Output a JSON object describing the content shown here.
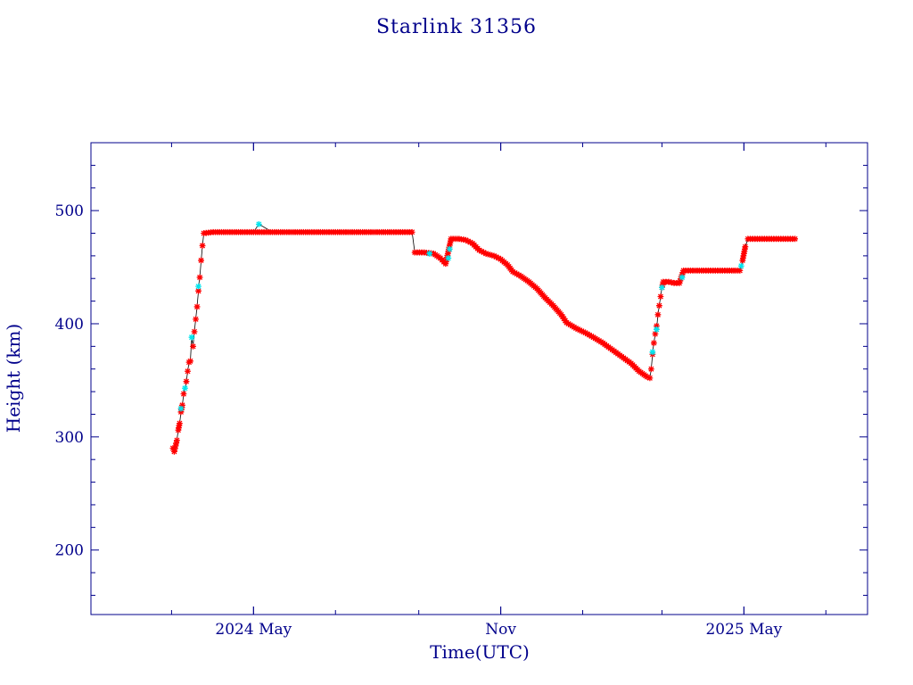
{
  "chart_data": {
    "type": "scatter",
    "title": "Starlink 31356",
    "xlabel": "Time(UTC)",
    "ylabel": "Height (km)",
    "x_ticks": [
      {
        "date": "2024-05-01",
        "label": "2024 May"
      },
      {
        "date": "2024-11-01",
        "label": "Nov"
      },
      {
        "date": "2025-05-01",
        "label": "2025 May"
      }
    ],
    "y_ticks": [
      200,
      300,
      400,
      500
    ],
    "xlim": [
      "2024-01-01",
      "2025-08-01"
    ],
    "ylim": [
      143,
      560
    ],
    "grid": false,
    "colors": {
      "axes": "#00008b",
      "main_points": "#ff0000",
      "alt_points": "#00e5ee",
      "line": "#000000"
    },
    "series": [
      {
        "marker": "asterisk",
        "color": "#ff0000",
        "points": [
          [
            "2024-03-02",
            290
          ],
          [
            "2024-03-03",
            287
          ],
          [
            "2024-03-04",
            292
          ],
          [
            "2024-03-05",
            297
          ],
          [
            "2024-03-06",
            306
          ],
          [
            "2024-03-07",
            312
          ],
          [
            "2024-03-08",
            322
          ],
          [
            "2024-03-09",
            328
          ],
          [
            "2024-03-10",
            338
          ],
          [
            "2024-03-12",
            349
          ],
          [
            "2024-03-13",
            358
          ],
          [
            "2024-03-14",
            366
          ],
          [
            "2024-03-15",
            367
          ],
          [
            "2024-03-17",
            380
          ],
          [
            "2024-03-18",
            393
          ],
          [
            "2024-03-19",
            404
          ],
          [
            "2024-03-20",
            415
          ],
          [
            "2024-03-21",
            429
          ],
          [
            "2024-03-22",
            441
          ],
          [
            "2024-03-23",
            456
          ],
          [
            "2024-03-24",
            469
          ],
          [
            "2024-03-25",
            480
          ],
          [
            "2024-04-01",
            481
          ],
          [
            "2024-04-15",
            481
          ],
          [
            "2024-05-01",
            481
          ],
          [
            "2024-05-15",
            481
          ],
          [
            "2024-06-01",
            481
          ],
          [
            "2024-06-15",
            481
          ],
          [
            "2024-07-01",
            481
          ],
          [
            "2024-07-15",
            481
          ],
          [
            "2024-08-01",
            481
          ],
          [
            "2024-08-15",
            481
          ],
          [
            "2024-08-25",
            481
          ],
          [
            "2024-08-27",
            481
          ],
          [
            "2024-08-29",
            463
          ],
          [
            "2024-09-05",
            463
          ],
          [
            "2024-09-12",
            462
          ],
          [
            "2024-09-17",
            458
          ],
          [
            "2024-09-21",
            453
          ],
          [
            "2024-09-25",
            475
          ],
          [
            "2024-10-01",
            475
          ],
          [
            "2024-10-06",
            474
          ],
          [
            "2024-10-11",
            471
          ],
          [
            "2024-10-16",
            465
          ],
          [
            "2024-10-21",
            462
          ],
          [
            "2024-10-27",
            460
          ],
          [
            "2024-11-01",
            457
          ],
          [
            "2024-11-06",
            452
          ],
          [
            "2024-11-10",
            446
          ],
          [
            "2024-11-16",
            442
          ],
          [
            "2024-11-22",
            437
          ],
          [
            "2024-11-28",
            431
          ],
          [
            "2024-12-04",
            423
          ],
          [
            "2024-12-10",
            416
          ],
          [
            "2024-12-16",
            408
          ],
          [
            "2024-12-20",
            401
          ],
          [
            "2024-12-27",
            396
          ],
          [
            "2025-01-03",
            392
          ],
          [
            "2025-01-09",
            388
          ],
          [
            "2025-01-16",
            383
          ],
          [
            "2025-01-23",
            377
          ],
          [
            "2025-01-30",
            371
          ],
          [
            "2025-02-06",
            365
          ],
          [
            "2025-02-12",
            358
          ],
          [
            "2025-02-18",
            353
          ],
          [
            "2025-02-20",
            352
          ],
          [
            "2025-02-21",
            360
          ],
          [
            "2025-02-22",
            373
          ],
          [
            "2025-02-23",
            383
          ],
          [
            "2025-02-24",
            391
          ],
          [
            "2025-02-25",
            398
          ],
          [
            "2025-02-26",
            408
          ],
          [
            "2025-02-27",
            416
          ],
          [
            "2025-02-28",
            424
          ],
          [
            "2025-03-01",
            432
          ],
          [
            "2025-03-02",
            437
          ],
          [
            "2025-03-06",
            437
          ],
          [
            "2025-03-10",
            436
          ],
          [
            "2025-03-14",
            436
          ],
          [
            "2025-03-17",
            447
          ],
          [
            "2025-03-24",
            447
          ],
          [
            "2025-04-01",
            447
          ],
          [
            "2025-04-08",
            447
          ],
          [
            "2025-04-15",
            447
          ],
          [
            "2025-04-22",
            447
          ],
          [
            "2025-04-28",
            447
          ],
          [
            "2025-04-30",
            456
          ],
          [
            "2025-05-01",
            462
          ],
          [
            "2025-05-02",
            468
          ],
          [
            "2025-05-04",
            475
          ],
          [
            "2025-05-11",
            475
          ],
          [
            "2025-05-18",
            475
          ],
          [
            "2025-05-25",
            475
          ],
          [
            "2025-06-01",
            475
          ],
          [
            "2025-06-08",
            475
          ]
        ]
      },
      {
        "marker": "asterisk",
        "color": "#00e5ee",
        "points": [
          [
            "2024-03-08",
            325
          ],
          [
            "2024-03-11",
            343
          ],
          [
            "2024-03-16",
            388
          ],
          [
            "2024-03-21",
            433
          ],
          [
            "2024-05-05",
            488
          ],
          [
            "2024-09-09",
            462
          ],
          [
            "2024-09-23",
            458
          ],
          [
            "2024-09-24",
            466
          ],
          [
            "2025-02-22",
            375
          ],
          [
            "2025-02-25",
            395
          ],
          [
            "2025-03-01",
            432
          ],
          [
            "2025-03-16",
            441
          ],
          [
            "2025-04-29",
            451
          ]
        ]
      }
    ]
  }
}
